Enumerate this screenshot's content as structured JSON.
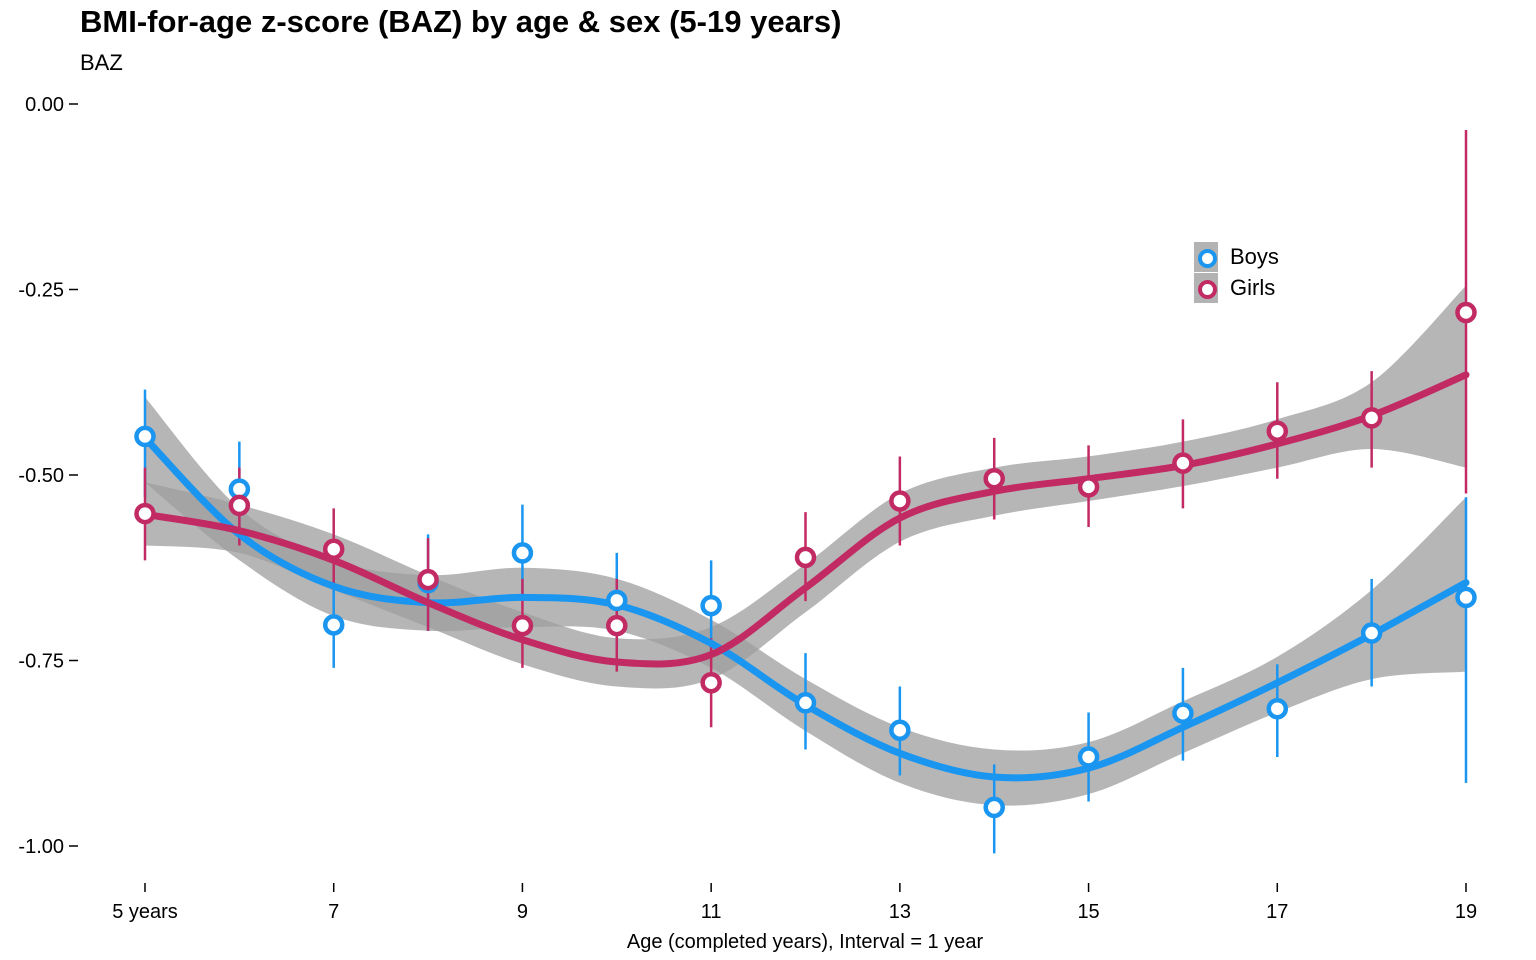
{
  "chart_data": {
    "type": "scatter",
    "title": "BMI-for-age z-score (BAZ) by age & sex (5-19 years)",
    "subtitle": "BAZ",
    "xlabel": "Age (completed years), Interval = 1 year",
    "ylabel": "",
    "xlim": [
      4.8,
      19.2
    ],
    "ylim": [
      -1.04,
      0.01
    ],
    "x_ticks": [
      5,
      7,
      9,
      11,
      13,
      15,
      17,
      19
    ],
    "x_tick_labels": [
      "5 years",
      "7",
      "9",
      "11",
      "13",
      "15",
      "17",
      "19"
    ],
    "y_ticks": [
      0,
      -0.25,
      -0.5,
      -0.75,
      -1.0
    ],
    "y_tick_labels": [
      "0.00",
      "-0.25",
      "-0.50",
      "-0.75",
      "-1.00"
    ],
    "grid": false,
    "legend_position": "top-right",
    "series": [
      {
        "name": "Boys",
        "color": "#1a96f0",
        "x": [
          5,
          6,
          7,
          8,
          9,
          10,
          11,
          12,
          13,
          14,
          15,
          16,
          17,
          18,
          19
        ],
        "y": [
          -0.448,
          -0.519,
          -0.702,
          -0.645,
          -0.605,
          -0.669,
          -0.676,
          -0.807,
          -0.844,
          -0.948,
          -0.88,
          -0.821,
          -0.815,
          -0.713,
          -0.665
        ],
        "ci_low": [
          -0.53,
          -0.59,
          -0.76,
          -0.71,
          -0.67,
          -0.735,
          -0.74,
          -0.87,
          -0.905,
          -1.01,
          -0.94,
          -0.885,
          -0.88,
          -0.785,
          -0.915
        ],
        "ci_high": [
          -0.385,
          -0.455,
          -0.64,
          -0.58,
          -0.54,
          -0.605,
          -0.615,
          -0.74,
          -0.785,
          -0.89,
          -0.82,
          -0.76,
          -0.755,
          -0.64,
          -0.53
        ],
        "smooth_y": [
          -0.45,
          -0.58,
          -0.65,
          -0.672,
          -0.665,
          -0.675,
          -0.727,
          -0.81,
          -0.875,
          -0.907,
          -0.895,
          -0.84,
          -0.78,
          -0.715,
          -0.645
        ],
        "smooth_low": [
          -0.51,
          -0.615,
          -0.69,
          -0.71,
          -0.705,
          -0.71,
          -0.76,
          -0.845,
          -0.915,
          -0.945,
          -0.93,
          -0.875,
          -0.82,
          -0.775,
          -0.765
        ],
        "smooth_high": [
          -0.395,
          -0.545,
          -0.615,
          -0.635,
          -0.625,
          -0.64,
          -0.695,
          -0.775,
          -0.84,
          -0.87,
          -0.86,
          -0.805,
          -0.745,
          -0.655,
          -0.53
        ]
      },
      {
        "name": "Girls",
        "color": "#c22a64",
        "x": [
          5,
          6,
          7,
          8,
          9,
          10,
          11,
          12,
          13,
          14,
          15,
          16,
          17,
          18,
          19
        ],
        "y": [
          -0.552,
          -0.541,
          -0.6,
          -0.641,
          -0.703,
          -0.703,
          -0.78,
          -0.611,
          -0.535,
          -0.505,
          -0.516,
          -0.484,
          -0.441,
          -0.423,
          -0.281
        ],
        "ci_low": [
          -0.615,
          -0.595,
          -0.655,
          -0.71,
          -0.76,
          -0.765,
          -0.84,
          -0.67,
          -0.595,
          -0.56,
          -0.57,
          -0.545,
          -0.505,
          -0.49,
          -0.525
        ],
        "ci_high": [
          -0.49,
          -0.49,
          -0.545,
          -0.585,
          -0.64,
          -0.64,
          -0.72,
          -0.55,
          -0.475,
          -0.45,
          -0.46,
          -0.425,
          -0.375,
          -0.36,
          -0.035
        ],
        "smooth_y": [
          -0.553,
          -0.575,
          -0.615,
          -0.672,
          -0.722,
          -0.752,
          -0.742,
          -0.652,
          -0.558,
          -0.522,
          -0.505,
          -0.487,
          -0.458,
          -0.42,
          -0.365
        ],
        "smooth_low": [
          -0.595,
          -0.605,
          -0.655,
          -0.705,
          -0.755,
          -0.785,
          -0.775,
          -0.685,
          -0.59,
          -0.555,
          -0.535,
          -0.515,
          -0.49,
          -0.465,
          -0.49
        ],
        "smooth_high": [
          -0.51,
          -0.54,
          -0.58,
          -0.635,
          -0.685,
          -0.72,
          -0.705,
          -0.62,
          -0.525,
          -0.49,
          -0.475,
          -0.455,
          -0.425,
          -0.375,
          -0.245
        ]
      }
    ]
  }
}
